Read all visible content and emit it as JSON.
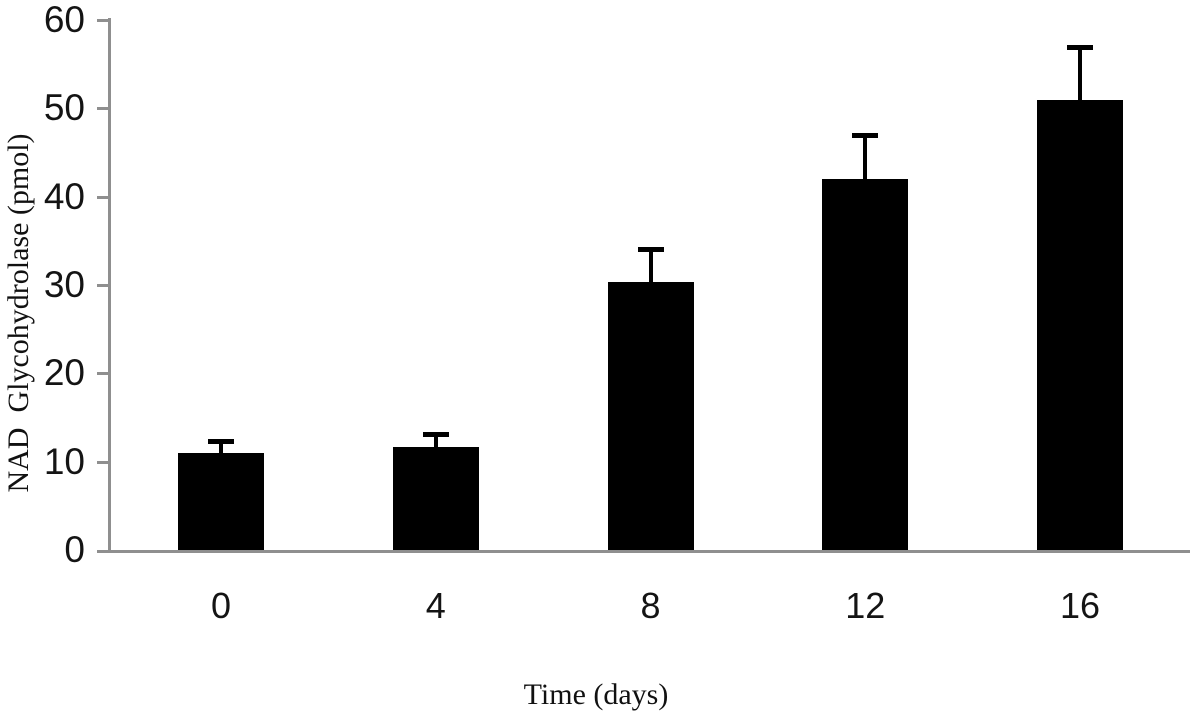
{
  "chart_data": {
    "type": "bar",
    "title": "",
    "xlabel": "Time (days)",
    "ylabel": "NAD  Glycohydrolase (pmol)",
    "categories": [
      "0",
      "4",
      "8",
      "12",
      "16"
    ],
    "values": [
      11,
      11.7,
      30.3,
      42,
      51
    ],
    "errors_plus": [
      1.3,
      1.4,
      3.8,
      5,
      6
    ],
    "error_bar_tops": [
      12.3,
      13.1,
      34.1,
      47,
      57
    ],
    "yticks": [
      0,
      10,
      20,
      30,
      40,
      50,
      60
    ],
    "ytick_labels": [
      "0",
      "10",
      "20",
      "30",
      "40",
      "50",
      "60"
    ],
    "ylim": [
      0,
      60
    ],
    "grid": false,
    "legend": null,
    "error_bars": {
      "direction": "plus",
      "caps": true
    },
    "bar_color": "#000000",
    "axis_color": "#8f8f8f",
    "text_color": "#141414",
    "background_color": "#ffffff"
  }
}
